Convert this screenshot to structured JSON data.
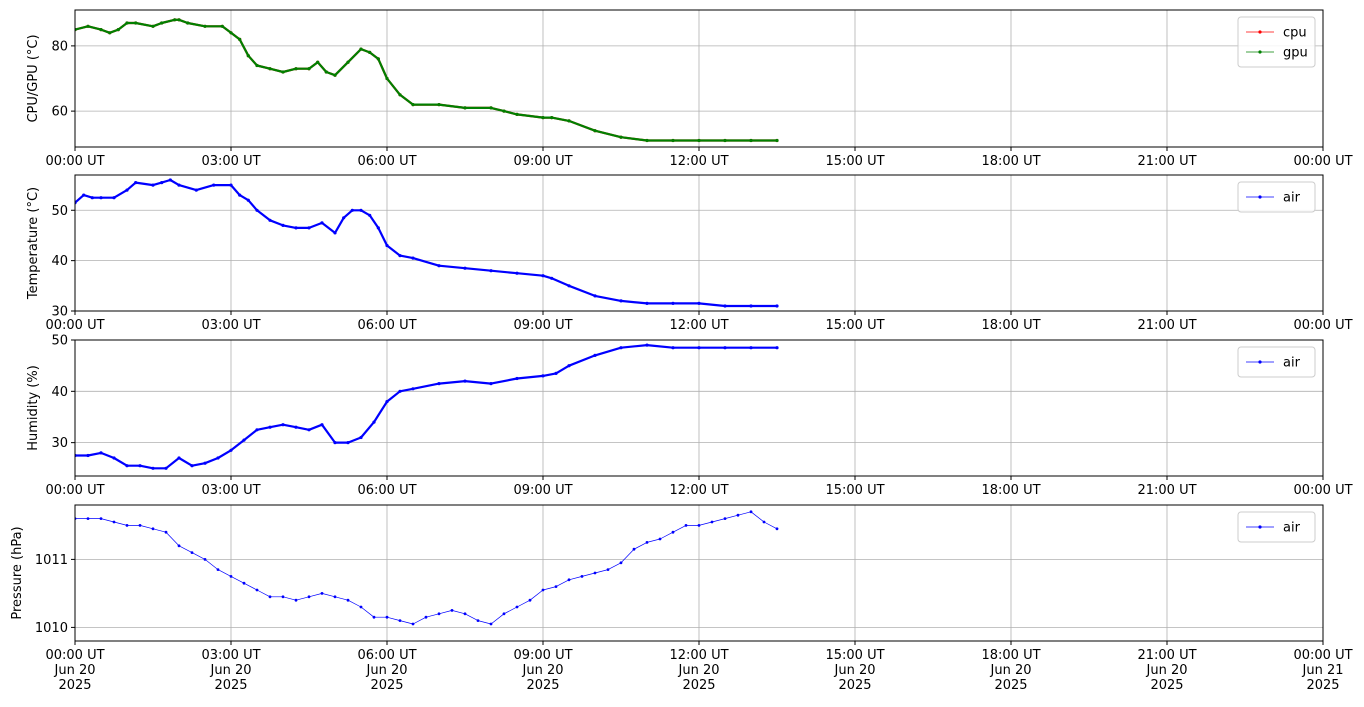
{
  "chart_data": [
    {
      "type": "line",
      "ylabel": "CPU/GPU (°C)",
      "xlim": [
        "00:00",
        "24:00"
      ],
      "ylim": [
        49,
        91
      ],
      "yticks": [
        60,
        80
      ],
      "x_tick_labels": [
        "00:00 UT",
        "03:00 UT",
        "06:00 UT",
        "09:00 UT",
        "12:00 UT",
        "15:00 UT",
        "18:00 UT",
        "21:00 UT",
        "00:00 UT"
      ],
      "grid": true,
      "legend_position": "top-right",
      "series": [
        {
          "name": "cpu",
          "color": "#ff0000",
          "x": [
            "00:00",
            "00:15",
            "00:30",
            "00:40",
            "00:50",
            "01:00",
            "01:10",
            "01:30",
            "01:40",
            "01:55",
            "02:00",
            "02:10",
            "02:30",
            "02:50",
            "03:00",
            "03:10",
            "03:20",
            "03:30",
            "03:45",
            "04:00",
            "04:15",
            "04:30",
            "04:40",
            "04:50",
            "05:00",
            "05:15",
            "05:30",
            "05:40",
            "05:50",
            "06:00",
            "06:15",
            "06:30",
            "07:00",
            "07:30",
            "08:00",
            "08:15",
            "08:30",
            "09:00",
            "09:10",
            "09:30",
            "10:00",
            "10:30",
            "11:00",
            "11:30",
            "12:00",
            "12:30",
            "13:00",
            "13:30"
          ],
          "y": [
            85,
            86,
            85,
            84,
            85,
            87,
            87,
            86,
            87,
            88,
            88,
            87,
            86,
            86,
            84,
            82,
            77,
            74,
            73,
            72,
            73,
            73,
            75,
            72,
            71,
            75,
            79,
            78,
            76,
            70,
            65,
            62,
            62,
            61,
            61,
            60,
            59,
            58,
            58,
            57,
            54,
            52,
            51,
            51,
            51,
            51,
            51,
            51
          ]
        },
        {
          "name": "gpu",
          "color": "#008000",
          "x": [
            "00:00",
            "00:15",
            "00:30",
            "00:40",
            "00:50",
            "01:00",
            "01:10",
            "01:30",
            "01:40",
            "01:55",
            "02:00",
            "02:10",
            "02:30",
            "02:50",
            "03:00",
            "03:10",
            "03:20",
            "03:30",
            "03:45",
            "04:00",
            "04:15",
            "04:30",
            "04:40",
            "04:50",
            "05:00",
            "05:15",
            "05:30",
            "05:40",
            "05:50",
            "06:00",
            "06:15",
            "06:30",
            "07:00",
            "07:30",
            "08:00",
            "08:15",
            "08:30",
            "09:00",
            "09:10",
            "09:30",
            "10:00",
            "10:30",
            "11:00",
            "11:30",
            "12:00",
            "12:30",
            "13:00",
            "13:30"
          ],
          "y": [
            85,
            86,
            85,
            84,
            85,
            87,
            87,
            86,
            87,
            88,
            88,
            87,
            86,
            86,
            84,
            82,
            77,
            74,
            73,
            72,
            73,
            73,
            75,
            72,
            71,
            75,
            79,
            78,
            76,
            70,
            65,
            62,
            62,
            61,
            61,
            60,
            59,
            58,
            58,
            57,
            54,
            52,
            51,
            51,
            51,
            51,
            51,
            51
          ]
        }
      ]
    },
    {
      "type": "line",
      "ylabel": "Temperature (°C)",
      "xlim": [
        "00:00",
        "24:00"
      ],
      "ylim": [
        30,
        57
      ],
      "yticks": [
        30,
        40,
        50
      ],
      "x_tick_labels": [
        "00:00 UT",
        "03:00 UT",
        "06:00 UT",
        "09:00 UT",
        "12:00 UT",
        "15:00 UT",
        "18:00 UT",
        "21:00 UT",
        "00:00 UT"
      ],
      "grid": true,
      "legend_position": "top-right",
      "series": [
        {
          "name": "air",
          "color": "#0000ff",
          "x": [
            "00:00",
            "00:10",
            "00:20",
            "00:30",
            "00:45",
            "01:00",
            "01:10",
            "01:30",
            "01:40",
            "01:50",
            "02:00",
            "02:20",
            "02:40",
            "03:00",
            "03:10",
            "03:20",
            "03:30",
            "03:45",
            "04:00",
            "04:15",
            "04:30",
            "04:45",
            "05:00",
            "05:10",
            "05:20",
            "05:30",
            "05:40",
            "05:50",
            "06:00",
            "06:15",
            "06:30",
            "07:00",
            "07:30",
            "08:00",
            "08:30",
            "09:00",
            "09:10",
            "09:30",
            "10:00",
            "10:30",
            "11:00",
            "11:30",
            "12:00",
            "12:30",
            "13:00",
            "13:30"
          ],
          "y": [
            51.5,
            53,
            52.5,
            52.5,
            52.5,
            54,
            55.5,
            55,
            55.5,
            56,
            55,
            54,
            55,
            55,
            53,
            52,
            50,
            48,
            47,
            46.5,
            46.5,
            47.5,
            45.5,
            48.5,
            50,
            50,
            49,
            46.5,
            43,
            41,
            40.5,
            39,
            38.5,
            38,
            37.5,
            37,
            36.5,
            35,
            33,
            32,
            31.5,
            31.5,
            31.5,
            31,
            31,
            31
          ]
        }
      ]
    },
    {
      "type": "line",
      "ylabel": "Humidity (%)",
      "xlim": [
        "00:00",
        "24:00"
      ],
      "ylim": [
        23.5,
        50
      ],
      "yticks": [
        30,
        40,
        50
      ],
      "x_tick_labels": [
        "00:00 UT",
        "03:00 UT",
        "06:00 UT",
        "09:00 UT",
        "12:00 UT",
        "15:00 UT",
        "18:00 UT",
        "21:00 UT",
        "00:00 UT"
      ],
      "grid": true,
      "legend_position": "top-right",
      "series": [
        {
          "name": "air",
          "color": "#0000ff",
          "x": [
            "00:00",
            "00:15",
            "00:30",
            "00:45",
            "01:00",
            "01:15",
            "01:30",
            "01:45",
            "02:00",
            "02:15",
            "02:30",
            "02:45",
            "03:00",
            "03:15",
            "03:30",
            "03:45",
            "04:00",
            "04:15",
            "04:30",
            "04:45",
            "05:00",
            "05:15",
            "05:30",
            "05:45",
            "06:00",
            "06:15",
            "06:30",
            "07:00",
            "07:30",
            "08:00",
            "08:30",
            "09:00",
            "09:15",
            "09:30",
            "10:00",
            "10:30",
            "11:00",
            "11:30",
            "12:00",
            "12:30",
            "13:00",
            "13:30"
          ],
          "y": [
            27.5,
            27.5,
            28,
            27,
            25.5,
            25.5,
            25,
            25,
            27,
            25.5,
            26,
            27,
            28.5,
            30.5,
            32.5,
            33,
            33.5,
            33,
            32.5,
            33.5,
            30,
            30,
            31,
            34,
            38,
            40,
            40.5,
            41.5,
            42,
            41.5,
            42.5,
            43,
            43.5,
            45,
            47,
            48.5,
            49,
            48.5,
            48.5,
            48.5,
            48.5,
            48.5
          ]
        }
      ]
    },
    {
      "type": "scatter",
      "ylabel": "Pressure (hPa)",
      "xlim": [
        "2025-06-20 00:00",
        "2025-06-21 00:00"
      ],
      "ylim": [
        1009.8,
        1011.8
      ],
      "yticks": [
        1010,
        1011
      ],
      "x_tick_labels": [
        [
          "00:00 UT",
          "Jun 20",
          "2025"
        ],
        [
          "03:00 UT",
          "Jun 20",
          "2025"
        ],
        [
          "06:00 UT",
          "Jun 20",
          "2025"
        ],
        [
          "09:00 UT",
          "Jun 20",
          "2025"
        ],
        [
          "12:00 UT",
          "Jun 20",
          "2025"
        ],
        [
          "15:00 UT",
          "Jun 20",
          "2025"
        ],
        [
          "18:00 UT",
          "Jun 20",
          "2025"
        ],
        [
          "21:00 UT",
          "Jun 20",
          "2025"
        ],
        [
          "00:00 UT",
          "Jun 21",
          "2025"
        ]
      ],
      "grid": true,
      "legend_position": "top-right",
      "series": [
        {
          "name": "air",
          "color": "#0000ff",
          "x": [
            "00:00",
            "00:15",
            "00:30",
            "00:45",
            "01:00",
            "01:15",
            "01:30",
            "01:45",
            "02:00",
            "02:15",
            "02:30",
            "02:45",
            "03:00",
            "03:15",
            "03:30",
            "03:45",
            "04:00",
            "04:15",
            "04:30",
            "04:45",
            "05:00",
            "05:15",
            "05:30",
            "05:45",
            "06:00",
            "06:15",
            "06:30",
            "06:45",
            "07:00",
            "07:15",
            "07:30",
            "07:45",
            "08:00",
            "08:15",
            "08:30",
            "08:45",
            "09:00",
            "09:15",
            "09:30",
            "09:45",
            "10:00",
            "10:15",
            "10:30",
            "10:45",
            "11:00",
            "11:15",
            "11:30",
            "11:45",
            "12:00",
            "12:15",
            "12:30",
            "12:45",
            "13:00",
            "13:15",
            "13:30"
          ],
          "y": [
            1011.6,
            1011.6,
            1011.6,
            1011.55,
            1011.5,
            1011.5,
            1011.45,
            1011.4,
            1011.2,
            1011.1,
            1011.0,
            1010.85,
            1010.75,
            1010.65,
            1010.55,
            1010.45,
            1010.45,
            1010.4,
            1010.45,
            1010.5,
            1010.45,
            1010.4,
            1010.3,
            1010.15,
            1010.15,
            1010.1,
            1010.05,
            1010.15,
            1010.2,
            1010.25,
            1010.2,
            1010.1,
            1010.05,
            1010.2,
            1010.3,
            1010.4,
            1010.55,
            1010.6,
            1010.7,
            1010.75,
            1010.8,
            1010.85,
            1010.95,
            1011.15,
            1011.25,
            1011.3,
            1011.4,
            1011.5,
            1011.5,
            1011.55,
            1011.6,
            1011.65,
            1011.7,
            1011.55,
            1011.45
          ]
        }
      ]
    }
  ]
}
